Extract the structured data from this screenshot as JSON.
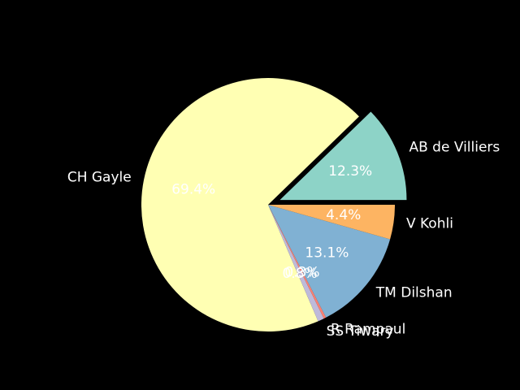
{
  "chart_data": {
    "type": "pie",
    "background": "#000000",
    "text_color": "#ffffff",
    "start_angle_deg": 0,
    "direction": "counterclockwise",
    "slices": [
      {
        "label": "AB de Villiers",
        "value": 12.3,
        "pct_label": "12.3%",
        "color": "#8dd3c7",
        "exploded": true
      },
      {
        "label": "CH Gayle",
        "value": 69.4,
        "pct_label": "69.4%",
        "color": "#ffffb3",
        "exploded": false
      },
      {
        "label": "SS Tiwary",
        "value": 0.8,
        "pct_label": "0.8%",
        "color": "#bebada",
        "exploded": false
      },
      {
        "label": "R Rampaul",
        "value": 0.3,
        "pct_label": "0.3%",
        "color": "#fb8072",
        "exploded": false
      },
      {
        "label": "TM Dilshan",
        "value": 13.1,
        "pct_label": "13.1%",
        "color": "#80b1d3",
        "exploded": false
      },
      {
        "label": "V Kohli",
        "value": 4.4,
        "pct_label": "4.4%",
        "color": "#fdb462",
        "exploded": false
      }
    ]
  }
}
